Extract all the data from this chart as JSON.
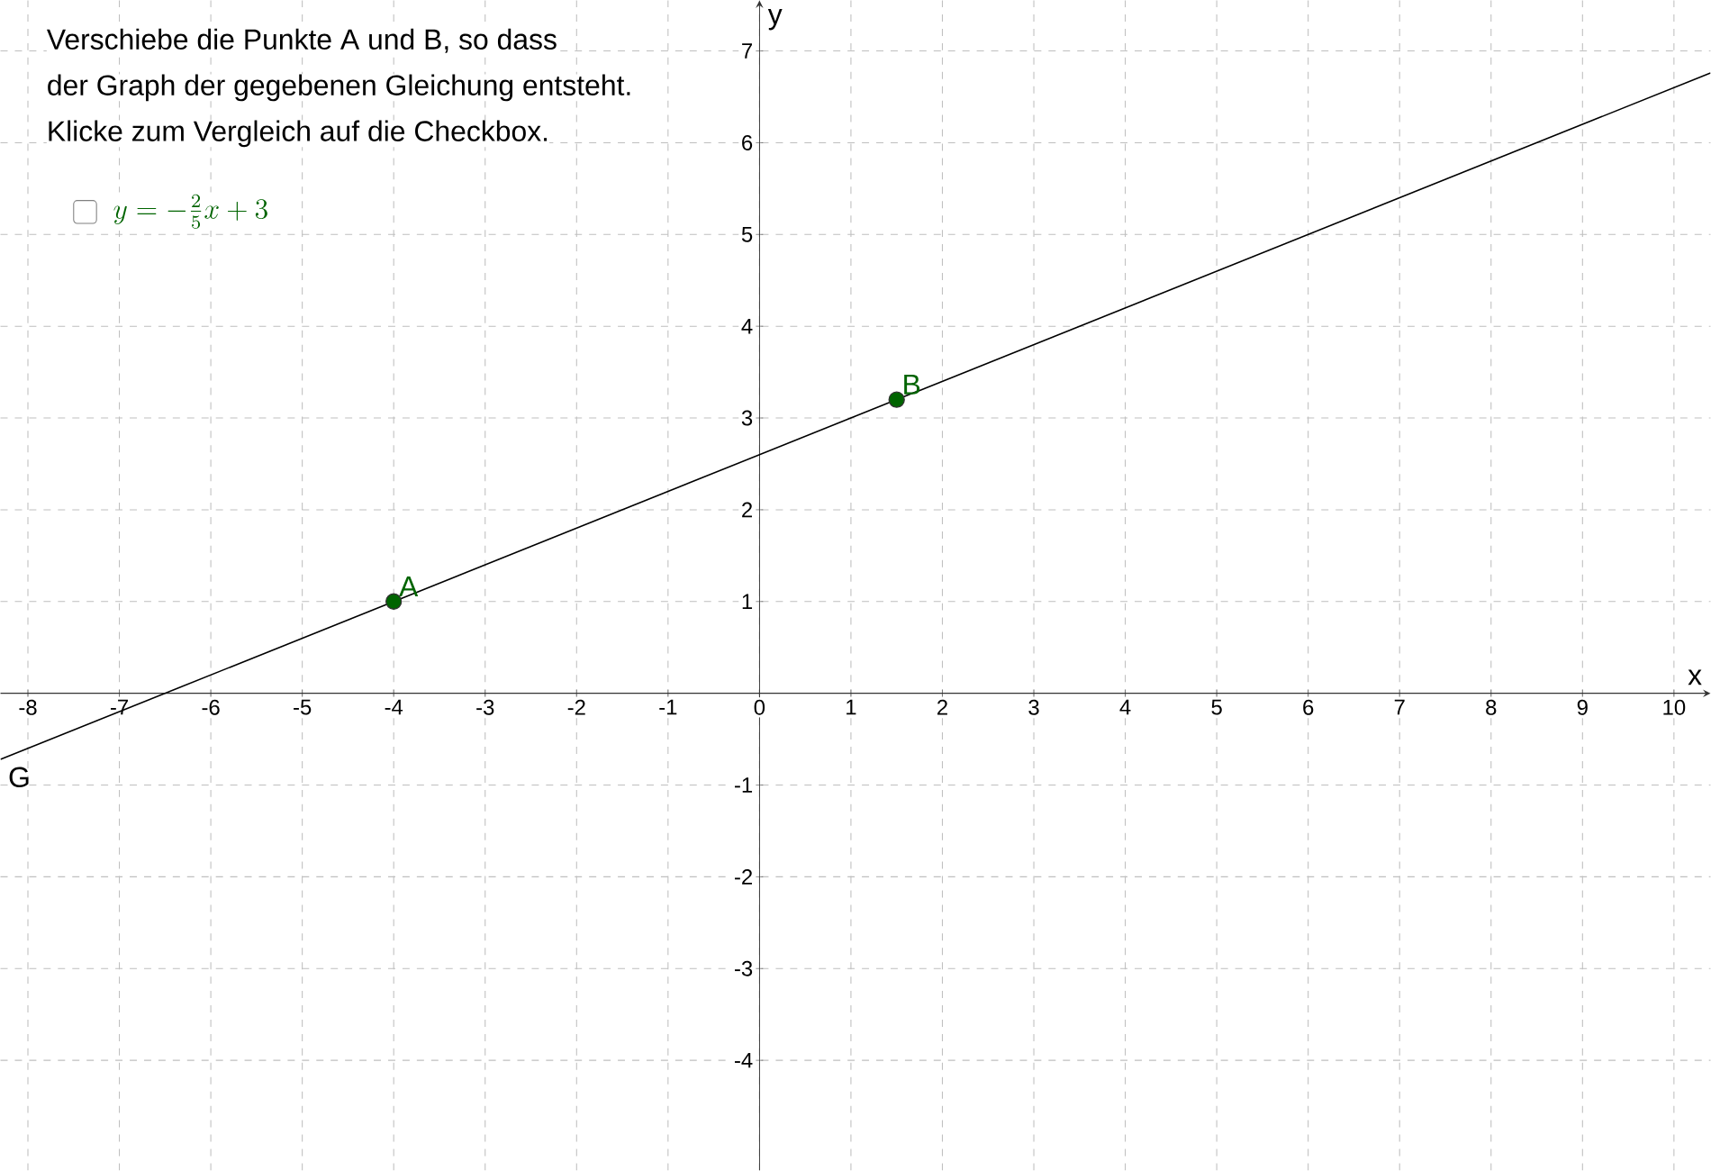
{
  "chart_data": {
    "type": "line",
    "xlabel": "x",
    "ylabel": "y",
    "series": [
      {
        "color": "#000000",
        "x": [
          -8.3,
          10.4
        ],
        "values": [
          -0.72,
          6.76
        ]
      },
      {
        "type": "scatter",
        "color": "#006400",
        "marker": "circle",
        "x": [
          -4,
          1.5
        ],
        "values": [
          1,
          3.2
        ]
      }
    ],
    "xlim": [
      -8.3,
      10.4
    ],
    "ylim": [
      -5.2,
      7.55
    ],
    "xticks": [
      -8,
      -7,
      -6,
      -5,
      -4,
      -3,
      -2,
      -1,
      0,
      1,
      2,
      3,
      4,
      5,
      6,
      7,
      8,
      9,
      10
    ],
    "yticks": [
      -4,
      -3,
      -2,
      -1,
      1,
      2,
      3,
      4,
      5,
      6,
      7
    ],
    "grid": true,
    "annotations": [
      "Verschiebe die Punkte A und B, so dass",
      "der Graph der gegebenen Gleichung entsteht.",
      "Klicke zum Vergleich auf die Checkbox.",
      "y=-\\frac{2}{5}x+3",
      {
        "text": "A",
        "x": -4,
        "y": 1
      },
      {
        "text": "B",
        "x": 1.5,
        "y": 3.2
      },
      {
        "text": "G",
        "x": -8.3,
        "y": -0.72
      }
    ]
  }
}
